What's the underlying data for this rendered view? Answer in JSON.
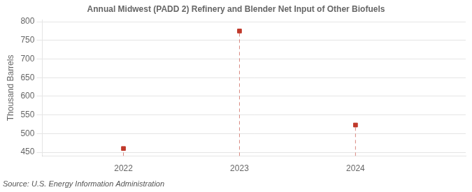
{
  "chart_data": {
    "type": "stem",
    "title": "Annual Midwest (PADD 2) Refinery and Blender Net Input of Other Biofuels",
    "ylabel": "Thousand Barrels",
    "annotation": "Source: U.S. Energy Information Administration",
    "x": [
      2022,
      2023,
      2024
    ],
    "values": [
      460,
      775,
      523
    ],
    "color": "#c0392b",
    "marker": "square",
    "line_style": "dashed",
    "xlim": [
      2021.3,
      2024.95
    ],
    "xticks": [
      2022,
      2023,
      2024
    ],
    "ylim": [
      440,
      805
    ],
    "yticks": [
      450,
      500,
      550,
      600,
      650,
      700,
      750,
      800
    ],
    "grid": "y"
  }
}
